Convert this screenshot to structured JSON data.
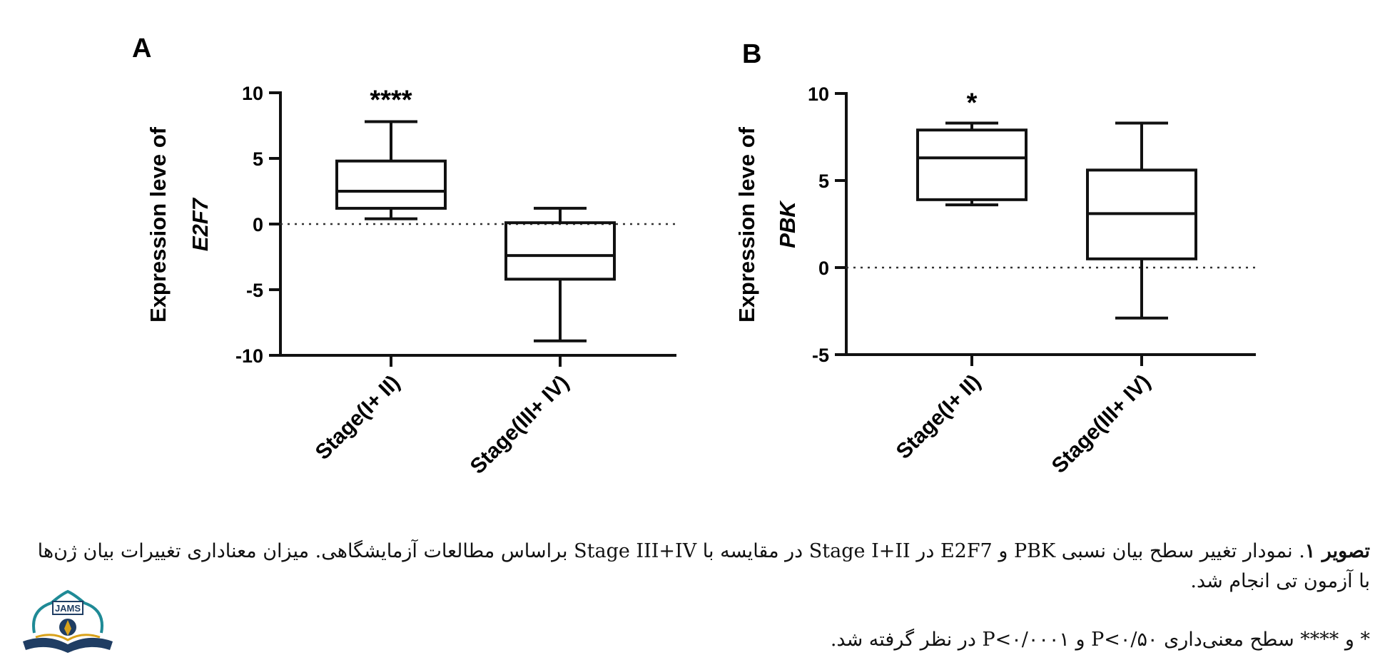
{
  "chart_data": [
    {
      "type": "box",
      "panel_label": "A",
      "ylabel_line1": "Expression leve of",
      "ylabel_line2": "E2F7",
      "ylim": [
        -10,
        10
      ],
      "yticks": [
        10,
        5,
        0,
        -5,
        -10
      ],
      "categories": [
        "Stage(I+ II)",
        "Stage(III+ IV)"
      ],
      "boxes": [
        {
          "min": 0.4,
          "q1": 1.2,
          "median": 2.5,
          "q3": 4.8,
          "max": 7.8
        },
        {
          "min": -8.9,
          "q1": -4.2,
          "median": -2.4,
          "q3": 0.1,
          "max": 1.2
        }
      ],
      "significance": [
        "****",
        ""
      ],
      "reference_line": 0
    },
    {
      "type": "box",
      "panel_label": "B",
      "ylabel_line1": "Expression leve of",
      "ylabel_line2": "PBK",
      "ylim": [
        -5,
        10
      ],
      "yticks": [
        10,
        5,
        0,
        -5
      ],
      "categories": [
        "Stage(I+ II)",
        "Stage(III+ IV)"
      ],
      "boxes": [
        {
          "min": 3.6,
          "q1": 3.9,
          "median": 6.3,
          "q3": 7.9,
          "max": 8.3
        },
        {
          "min": -2.9,
          "q1": 0.5,
          "median": 3.1,
          "q3": 5.6,
          "max": 8.3
        }
      ],
      "significance": [
        "*",
        ""
      ],
      "reference_line": 0
    }
  ],
  "caption": {
    "title_bold": "تصویر ۱",
    "line1": ". نمودار تغییر سطح بیان نسبی PBK و E2F7 در Stage I+II در مقایسه با Stage III+IV براساس مطالعات آزمایشگاهی. میزان معناداری تغییرات بیان ژن‌ها با آزمون تی انجام شد.",
    "line2": "* و **** سطح معنی‌داری P<۰/۵۰ و P<۰/۰۰۰۱ در نظر گرفته شد."
  },
  "logo": {
    "text": "JAMS"
  },
  "colors": {
    "ink": "#111111",
    "logo_teal": "#1f8a96",
    "logo_navy": "#1f3d63",
    "logo_gold": "#d9a21b"
  }
}
